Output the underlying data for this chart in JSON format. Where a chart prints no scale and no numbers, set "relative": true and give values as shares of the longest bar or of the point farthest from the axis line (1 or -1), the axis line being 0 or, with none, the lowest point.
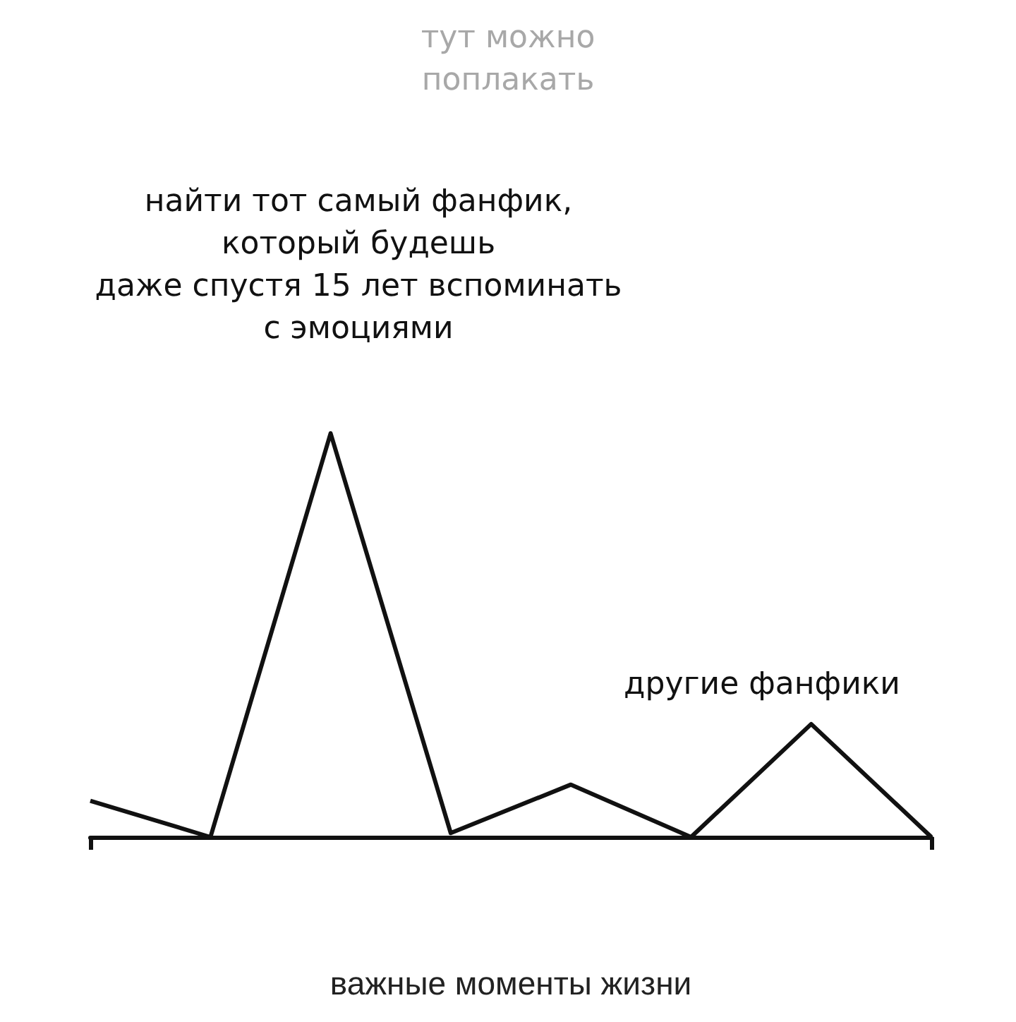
{
  "chart_data": {
    "type": "line",
    "relative": true,
    "xlabel": "важные моменты жизни",
    "categories": [
      null,
      null,
      null,
      null,
      null,
      null,
      null,
      null
    ],
    "series": [
      {
        "color": "#111111",
        "values": [
          0.09,
          0,
          1,
          0.01,
          0.13,
          0,
          0.28,
          0
        ]
      }
    ],
    "annotations": [
      "тут можно\nпоплакать",
      "найти тот самый фанфик,\nкоторый будешь\nдаже спустя 15 лет вспоминать\nс эмоциями",
      "другие фанфики"
    ],
    "marker": "none",
    "line_style": "solid"
  }
}
